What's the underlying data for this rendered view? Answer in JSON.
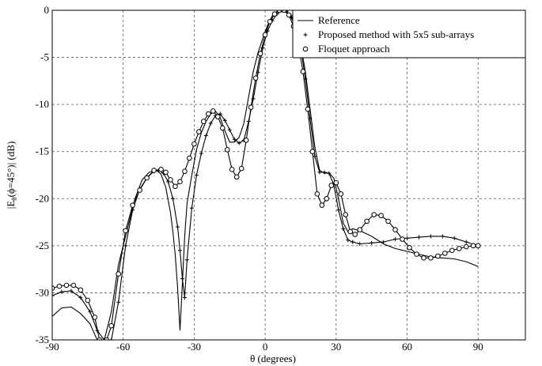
{
  "chart_data": {
    "type": "line",
    "xlabel": "θ (degrees)",
    "ylabel": "|E_θ(ϕ=45°)| (dB)",
    "ylabel_parts": {
      "pre": "|E",
      "sub": "θ",
      "post": "(ϕ=45°)| (dB)"
    },
    "xlim": [
      -90,
      110
    ],
    "ylim": [
      -35,
      0
    ],
    "xticks": [
      -90,
      -60,
      -30,
      0,
      30,
      60,
      90
    ],
    "xtick_labels": [
      "-90",
      "-60",
      "-30",
      "0",
      "30",
      "60",
      "90"
    ],
    "yticks": [
      0,
      -5,
      -10,
      -15,
      -20,
      -25,
      -30,
      -35
    ],
    "ytick_labels": [
      "0",
      "-5",
      "-10",
      "-15",
      "-20",
      "-25",
      "-30",
      "-35"
    ],
    "grid": true,
    "legend_position": "top-right",
    "series": [
      {
        "name": "Reference",
        "marker": "none",
        "color": "#000000",
        "x": [
          -90,
          -86,
          -82,
          -78,
          -74,
          -71,
          -68,
          -65,
          -62,
          -58,
          -55,
          -52,
          -49,
          -46,
          -44,
          -42,
          -40,
          -39,
          -38,
          -37,
          -36,
          -35,
          -34,
          -33,
          -31,
          -29,
          -27,
          -25,
          -23,
          -21,
          -19,
          -17,
          -15,
          -13,
          -11,
          -9,
          -7,
          -5,
          -3,
          -1,
          1,
          3,
          5,
          7,
          8,
          9,
          11,
          13,
          15,
          17,
          19,
          21,
          23,
          25,
          27,
          29,
          31,
          33,
          35,
          37,
          40,
          45,
          50,
          55,
          60,
          65,
          70,
          75,
          80,
          85,
          90
        ],
        "y": [
          -32.5,
          -31.6,
          -31.5,
          -32.2,
          -33.3,
          -35,
          -35,
          -32,
          -27,
          -23,
          -20,
          -18,
          -17.2,
          -17,
          -17.4,
          -18.8,
          -21.5,
          -23.5,
          -26,
          -29.5,
          -34,
          -29,
          -24,
          -20.5,
          -17.5,
          -14.8,
          -13,
          -11.8,
          -11,
          -10.7,
          -11.4,
          -12.8,
          -14,
          -14,
          -13.5,
          -12,
          -9.2,
          -6.5,
          -4.5,
          -3,
          -1.6,
          -0.6,
          -0.1,
          0,
          0,
          -0.2,
          -0.8,
          -1.8,
          -3.6,
          -6.5,
          -10.5,
          -14.5,
          -17,
          -17.3,
          -17.3,
          -17.8,
          -20,
          -22.6,
          -23.5,
          -23.2,
          -23.4,
          -24,
          -24.8,
          -25.3,
          -25.6,
          -25.9,
          -26.2,
          -26.3,
          -26.4,
          -26.7,
          -27.2
        ]
      },
      {
        "name": "Proposed method with 5x5 sub-arrays",
        "marker": "plus",
        "color": "#000000",
        "x": [
          -90,
          -86,
          -82,
          -78,
          -74,
          -71,
          -68,
          -65,
          -62,
          -59,
          -56,
          -53,
          -50,
          -47,
          -45,
          -43,
          -41,
          -39,
          -37,
          -36,
          -35,
          -34,
          -33,
          -31,
          -29,
          -27,
          -25,
          -23,
          -21,
          -19,
          -17,
          -15,
          -13,
          -11,
          -9,
          -7,
          -5,
          -3,
          -1,
          1,
          3,
          5,
          7,
          9,
          11,
          13,
          15,
          17,
          19,
          21,
          23,
          25,
          27,
          29,
          31,
          33,
          35,
          37,
          40,
          45,
          50,
          55,
          60,
          65,
          70,
          75,
          80,
          85,
          90
        ],
        "y": [
          -30.3,
          -29.9,
          -29.8,
          -30.5,
          -32,
          -34,
          -35,
          -35,
          -31,
          -25,
          -21.2,
          -19,
          -17.8,
          -17.1,
          -17,
          -17.3,
          -18.2,
          -20,
          -23,
          -25.5,
          -28.5,
          -30.5,
          -26.5,
          -21,
          -17.5,
          -15.2,
          -13.3,
          -12,
          -11.2,
          -11,
          -11.7,
          -12.7,
          -13.7,
          -14.1,
          -13.8,
          -11.8,
          -9.4,
          -6.6,
          -4,
          -2.2,
          -1.1,
          -0.4,
          0,
          -0.1,
          -0.6,
          -1.8,
          -3.8,
          -7.3,
          -11.5,
          -15.5,
          -17.2,
          -17.2,
          -17.3,
          -18.5,
          -21.2,
          -23.2,
          -24.4,
          -24.6,
          -24.8,
          -24.7,
          -24.6,
          -24.3,
          -24.2,
          -24.1,
          -24,
          -24,
          -24.2,
          -24.6,
          -25
        ]
      },
      {
        "name": "Floquet approach",
        "marker": "circle",
        "color": "#000000",
        "x": [
          -90,
          -87,
          -84,
          -81,
          -78,
          -75,
          -72,
          -70,
          -67,
          -65,
          -62,
          -59,
          -56,
          -53,
          -50,
          -47,
          -44,
          -42,
          -40,
          -38,
          -36,
          -34,
          -32,
          -30,
          -28,
          -26,
          -24,
          -22,
          -20,
          -18,
          -16,
          -14,
          -12,
          -10,
          -8,
          -6,
          -4,
          -2,
          0,
          2,
          4,
          6,
          8,
          10,
          12,
          14,
          16,
          18,
          20,
          22,
          24,
          26,
          28,
          30,
          32,
          34,
          36,
          38,
          40,
          43,
          46,
          49,
          52,
          55,
          58,
          61,
          64,
          67,
          70,
          73,
          76,
          79,
          82,
          85,
          88,
          90
        ],
        "y": [
          -29.5,
          -29.3,
          -29.2,
          -29.2,
          -29.7,
          -30.8,
          -32.6,
          -35,
          -35,
          -33.5,
          -28,
          -23.4,
          -20.7,
          -19.1,
          -17.8,
          -17,
          -16.9,
          -17.2,
          -18,
          -18.7,
          -18.2,
          -17.1,
          -15.7,
          -14.2,
          -12.9,
          -11.8,
          -11,
          -10.7,
          -11.3,
          -12.5,
          -14.8,
          -16.9,
          -17.7,
          -16.8,
          -13.8,
          -10.3,
          -7.2,
          -4.6,
          -2.6,
          -1.2,
          -0.4,
          0,
          0,
          -0.5,
          -1.7,
          -3.6,
          -6.5,
          -10.5,
          -15,
          -19.5,
          -20.7,
          -20,
          -18.6,
          -18.3,
          -19.5,
          -21.7,
          -23.5,
          -23.8,
          -23.3,
          -22.4,
          -21.7,
          -21.8,
          -22.4,
          -23.3,
          -24.3,
          -25.2,
          -25.9,
          -26.3,
          -26.3,
          -26.1,
          -25.8,
          -25.5,
          -25.3,
          -25.1,
          -25,
          -25
        ]
      }
    ]
  }
}
